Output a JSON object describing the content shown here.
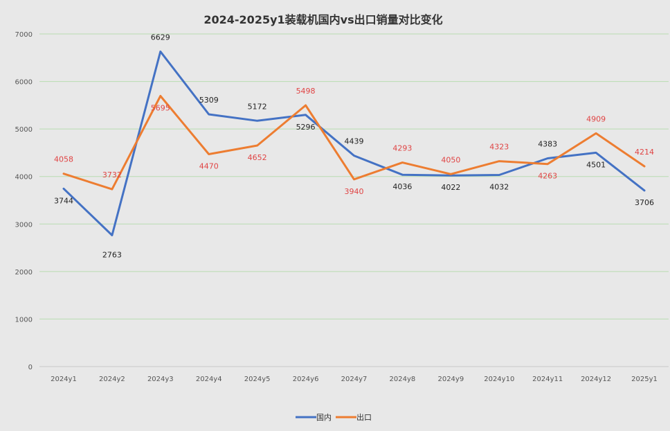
{
  "chart_data": {
    "type": "line",
    "title": "2024-2025y1装载机国内vs出口销量对比变化",
    "categories": [
      "2024y1",
      "2024y2",
      "2024y3",
      "2024y4",
      "2024y5",
      "2024y6",
      "2024y7",
      "2024y8",
      "2024y9",
      "2024y10",
      "2024y11",
      "2024y12",
      "2025y1"
    ],
    "ylim": [
      0,
      7000
    ],
    "yticks": [
      0,
      1000,
      2000,
      3000,
      4000,
      5000,
      6000,
      7000
    ],
    "grid": true,
    "legend_position": "bottom",
    "series": [
      {
        "name": "国内",
        "color": "#4472c4",
        "label_color": "#222222",
        "values": [
          3744,
          2763,
          6629,
          5309,
          5172,
          5296,
          4439,
          4036,
          4022,
          4032,
          4383,
          4501,
          3706
        ]
      },
      {
        "name": "出口",
        "color": "#ed7d31",
        "label_color": "#e04444",
        "values": [
          4058,
          3732,
          5695,
          4470,
          4652,
          5498,
          3940,
          4293,
          4050,
          4323,
          4263,
          4909,
          4214
        ]
      }
    ]
  },
  "colors": {
    "background": "#e8e8e8",
    "gridline": "#b8dcb0"
  }
}
